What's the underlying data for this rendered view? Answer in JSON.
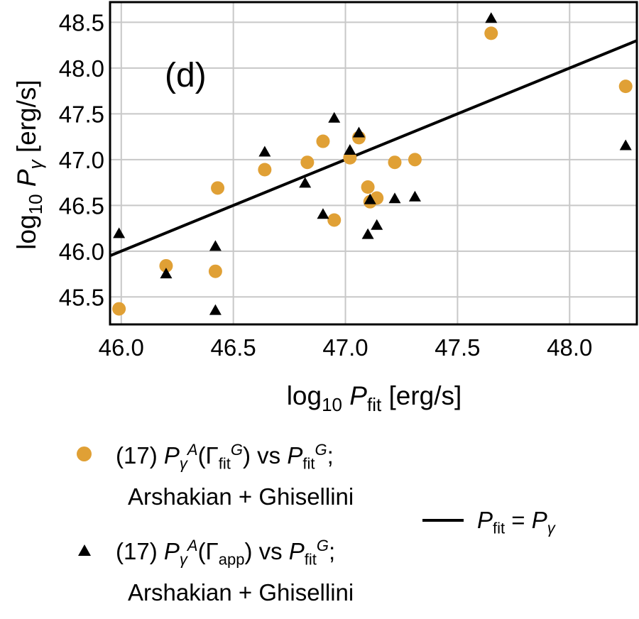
{
  "chart_data": {
    "type": "scatter",
    "panel_label": "(d)",
    "xlabel": {
      "base": "log",
      "sub1": "10",
      "var": "P",
      "sub2": "fit",
      "unit": "[erg/s]"
    },
    "ylabel": {
      "base": "log",
      "sub1": "10",
      "var": "P",
      "sub2": "γ",
      "unit": "[erg/s]"
    },
    "xlim": [
      45.95,
      48.3
    ],
    "ylim": [
      45.2,
      48.72
    ],
    "xticks": [
      "46.0",
      "46.5",
      "47.0",
      "47.5",
      "48.0"
    ],
    "yticks": [
      "45.5",
      "46.0",
      "46.5",
      "47.0",
      "47.5",
      "48.0",
      "48.5"
    ],
    "grid": true,
    "colors": {
      "circle": "#E0A035",
      "triangle": "#000000",
      "line": "#000000",
      "grid": "#c8c8c8"
    },
    "series": [
      {
        "name": "circles",
        "marker": "circle",
        "points": [
          [
            45.99,
            45.37
          ],
          [
            46.2,
            45.84
          ],
          [
            46.42,
            45.78
          ],
          [
            46.43,
            46.69
          ],
          [
            46.64,
            46.89
          ],
          [
            46.83,
            46.97
          ],
          [
            46.9,
            47.2
          ],
          [
            46.95,
            46.34
          ],
          [
            47.02,
            47.02
          ],
          [
            47.06,
            47.24
          ],
          [
            47.1,
            46.7
          ],
          [
            47.11,
            46.54
          ],
          [
            47.14,
            46.58
          ],
          [
            47.22,
            46.97
          ],
          [
            47.31,
            47.0
          ],
          [
            47.65,
            48.38
          ],
          [
            48.25,
            47.8
          ]
        ]
      },
      {
        "name": "triangles",
        "marker": "triangle",
        "points": [
          [
            45.99,
            46.19
          ],
          [
            46.2,
            45.75
          ],
          [
            46.42,
            45.35
          ],
          [
            46.42,
            46.05
          ],
          [
            46.64,
            47.08
          ],
          [
            46.82,
            46.74
          ],
          [
            46.9,
            46.4
          ],
          [
            46.95,
            47.45
          ],
          [
            47.02,
            47.1
          ],
          [
            47.06,
            47.29
          ],
          [
            47.1,
            46.18
          ],
          [
            47.11,
            46.56
          ],
          [
            47.14,
            46.28
          ],
          [
            47.22,
            46.57
          ],
          [
            47.31,
            46.59
          ],
          [
            47.65,
            48.54
          ],
          [
            48.25,
            47.15
          ]
        ]
      }
    ],
    "reference_line": {
      "type": "y=x",
      "label": "P_fit = P_γ"
    }
  },
  "legend": {
    "circle_entry": {
      "prefix": "(17) ",
      "p": "P",
      "p_sub": "γ",
      "p_sup": "A",
      "gamma_open": "(Γ",
      "gamma_sub": "fit",
      "gamma_sup": "G",
      "gamma_close": ") vs ",
      "p2": "P",
      "p2_sub": "fit",
      "p2_sup": "G",
      "end": ";",
      "line2": "Arshakian + Ghisellini"
    },
    "triangle_entry": {
      "prefix": "(17) ",
      "p": "P",
      "p_sub": "γ",
      "p_sup": "A",
      "gamma_open": "(Γ",
      "gamma_sub": "app",
      "gamma_close": ") vs ",
      "p2": "P",
      "p2_sub": "fit",
      "p2_sup": "G",
      "end": ";",
      "line2": "Arshakian + Ghisellini"
    },
    "line_entry": {
      "lhs": "P",
      "lhs_sub": "fit",
      "eq": " = ",
      "rhs": "P",
      "rhs_sub": "γ"
    }
  }
}
